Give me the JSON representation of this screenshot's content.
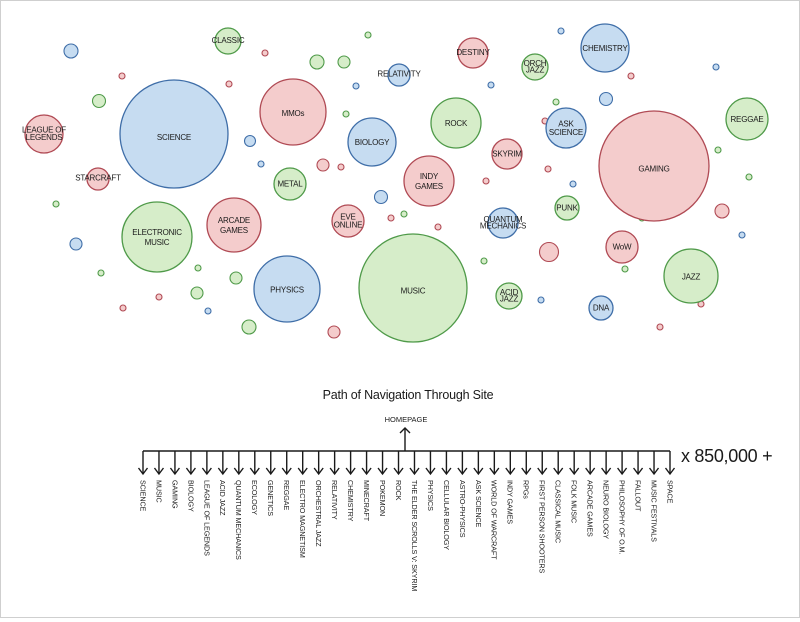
{
  "colors": {
    "blue": {
      "fill": "#c6dcf1",
      "stroke": "#3f6ea8"
    },
    "red": {
      "fill": "#f4cccc",
      "stroke": "#b04a54"
    },
    "green": {
      "fill": "#d6edc9",
      "stroke": "#4f9a49"
    }
  },
  "bubbles": [
    {
      "label": [
        "SCIENCE"
      ],
      "color": "blue"
    },
    {
      "label": [
        "MUSIC"
      ],
      "color": "green"
    },
    {
      "label": [
        "GAMING"
      ],
      "color": "red"
    },
    {
      "label": [
        "MMOs"
      ],
      "color": "red"
    },
    {
      "label": [
        "PHYSICS"
      ],
      "color": "blue"
    },
    {
      "label": [
        "BIOLOGY"
      ],
      "color": "blue"
    },
    {
      "label": [
        "ROCK"
      ],
      "color": "green"
    },
    {
      "label": [
        "JAZZ"
      ],
      "color": "green"
    },
    {
      "label": [
        "INDY",
        "GAMES"
      ],
      "color": "red"
    },
    {
      "label": [
        "ELECTRONIC",
        "MUSIC"
      ],
      "color": "green"
    },
    {
      "label": [
        "ARCADE",
        "GAMES"
      ],
      "color": "red"
    },
    {
      "label": [
        "CHEMISTRY"
      ],
      "color": "blue"
    },
    {
      "label": [
        "REGGAE"
      ],
      "color": "green"
    },
    {
      "label": [
        "ASK",
        "SCIENCE"
      ],
      "color": "blue"
    },
    {
      "label": [
        "LEAGUE OF",
        "LEGENDS"
      ],
      "color": "red"
    },
    {
      "label": [
        "METAL"
      ],
      "color": "green"
    },
    {
      "label": [
        "EVE",
        "ONLINE"
      ],
      "color": "red"
    },
    {
      "label": [
        "SKYRIM"
      ],
      "color": "red"
    },
    {
      "label": [
        "QUANTUM",
        "MECHANICS"
      ],
      "color": "blue"
    },
    {
      "label": [
        "CLASSIC"
      ],
      "color": "green"
    },
    {
      "label": [
        "DESTINY"
      ],
      "color": "red"
    },
    {
      "label": [
        "ORCH",
        "JAZZ"
      ],
      "color": "green"
    },
    {
      "label": [
        "WoW"
      ],
      "color": "red"
    },
    {
      "label": [
        "PUNK"
      ],
      "color": "green"
    },
    {
      "label": [
        "ACID",
        "JAZZ"
      ],
      "color": "green"
    },
    {
      "label": [
        "DNA"
      ],
      "color": "blue"
    },
    {
      "label": [
        "STARCRAFT"
      ],
      "color": "red"
    },
    {
      "label": [
        "RELATIVITY"
      ],
      "color": "blue"
    }
  ],
  "dots": [
    {
      "color": "blue"
    },
    {
      "color": "green"
    },
    {
      "color": "red"
    },
    {
      "color": "green"
    },
    {
      "color": "blue"
    },
    {
      "color": "green"
    },
    {
      "color": "red"
    },
    {
      "color": "red"
    },
    {
      "color": "green"
    },
    {
      "color": "green"
    },
    {
      "color": "blue"
    },
    {
      "color": "blue"
    },
    {
      "color": "red"
    },
    {
      "color": "red"
    },
    {
      "color": "blue"
    },
    {
      "color": "green"
    },
    {
      "color": "green"
    },
    {
      "color": "green"
    },
    {
      "color": "red"
    },
    {
      "color": "blue"
    },
    {
      "color": "red"
    },
    {
      "color": "green"
    },
    {
      "color": "blue"
    },
    {
      "color": "green"
    },
    {
      "color": "red"
    },
    {
      "color": "green"
    },
    {
      "color": "red"
    },
    {
      "color": "green"
    },
    {
      "color": "blue"
    },
    {
      "color": "red"
    },
    {
      "color": "green"
    },
    {
      "color": "blue"
    },
    {
      "color": "green"
    },
    {
      "color": "red"
    },
    {
      "color": "blue"
    },
    {
      "color": "red"
    },
    {
      "color": "blue"
    },
    {
      "color": "red"
    },
    {
      "color": "green"
    },
    {
      "color": "blue"
    },
    {
      "color": "green"
    },
    {
      "color": "red"
    },
    {
      "color": "blue"
    },
    {
      "color": "red"
    },
    {
      "color": "green"
    },
    {
      "color": "blue"
    },
    {
      "color": "red"
    },
    {
      "color": "green"
    },
    {
      "color": "red"
    },
    {
      "color": "green"
    },
    {
      "color": "blue"
    },
    {
      "color": "red"
    }
  ],
  "tree": {
    "title": "Path of Navigation Through Site",
    "root": "HOMEPAGE",
    "count": "x 850,000 +",
    "branches": [
      "SCIENCE",
      "MUSIC",
      "GAMING",
      "BIOLOGY",
      "LEAGUE OF LEGENDS",
      "ACID JAZZ",
      "QUANTUM MECHANICS",
      "ECOLOGY",
      "GENETICS",
      "REGGAE",
      "ELECTRO MAGNETISM",
      "ORCHESTRAL JAZZ",
      "RELATIVITY",
      "CHEMISTRY",
      "MINECRAFT",
      "POKEMON",
      "ROCK",
      "THE ELDER SCROLLS V: SKYRIM",
      "PHYSICS",
      "CELLULAR BIOLOGY",
      "ASTRO-PHYSICS",
      "ASK SCIENCE",
      "WORLD OF WARCRAFT",
      "INDY GAMES",
      "RPGs",
      "FIRST PERSON SHOOTERS",
      "CLASSICAL MUSIC",
      "FOLK MUSIC",
      "ARCADE GAMES",
      "NEURO BIOLOGY",
      "PHILOSOPHY OF O.M.",
      "FALLOUT",
      "MUSIC FESTIVALS",
      "SPACE"
    ]
  }
}
